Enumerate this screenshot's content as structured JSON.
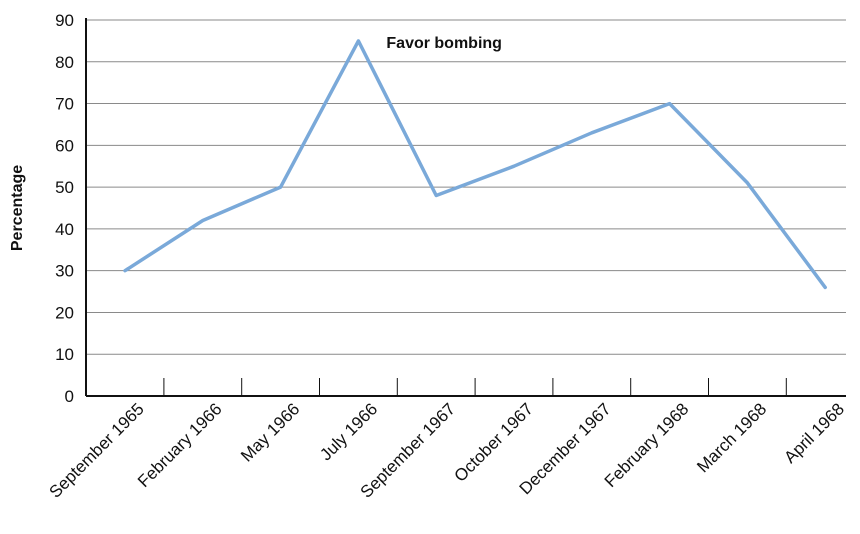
{
  "chart_data": {
    "type": "line",
    "title": "",
    "xlabel": "",
    "ylabel": "Percentage",
    "ylim": [
      0,
      90
    ],
    "yticks": [
      0,
      10,
      20,
      30,
      40,
      50,
      60,
      70,
      80,
      90
    ],
    "grid": true,
    "legend": "none",
    "categories": [
      "September 1965",
      "February 1966",
      "May 1966",
      "July 1966",
      "September 1967",
      "October 1967",
      "December 1967",
      "February 1968",
      "March 1968",
      "April 1968"
    ],
    "series": [
      {
        "color": "#7aa9d9",
        "values": [
          30,
          42,
          50,
          85,
          48,
          55,
          63,
          70,
          51,
          26
        ]
      }
    ],
    "annotations": [
      {
        "text": "Favor bombing",
        "category": "July 1966",
        "y": 85
      }
    ]
  }
}
